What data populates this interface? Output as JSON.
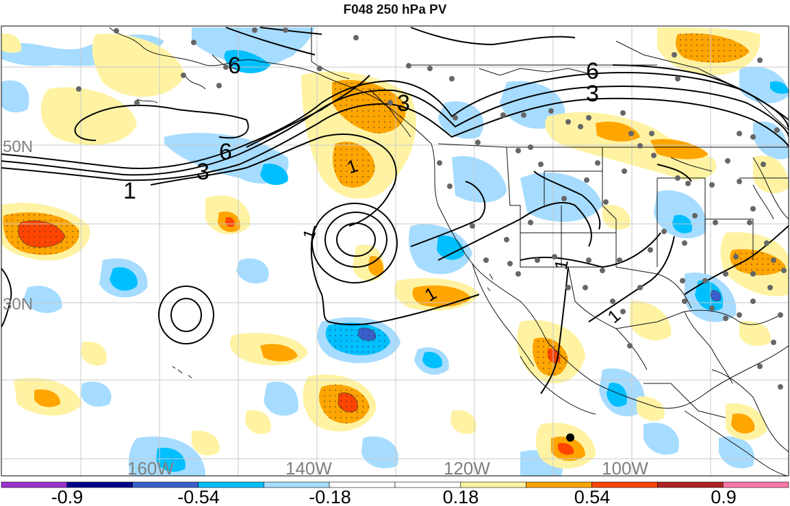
{
  "title": "F048 250 hPa PV",
  "latitude_labels": [
    "50N",
    "30N"
  ],
  "longitude_labels": [
    "160W",
    "140W",
    "120W",
    "100W"
  ],
  "contour_labels": [
    "6",
    "3",
    "6",
    "3",
    "1",
    "3",
    "6",
    "1",
    "1",
    "1",
    "1",
    "1"
  ],
  "colorbar": {
    "tick_labels": [
      "-0.9",
      "-0.54",
      "-0.18",
      "0.18",
      "0.54",
      "0.9"
    ],
    "colors": [
      "#9a32cd",
      "#00008b",
      "#3a5fcd",
      "#00bfff",
      "#a6dcff",
      "#ffffff",
      "#ffffff",
      "#fff3a3",
      "#ffa500",
      "#ff4500",
      "#b22222",
      "#ff77aa"
    ]
  },
  "colors": {
    "ocean_light_blue": "#a6dcff",
    "blue": "#00bfff",
    "deep_blue": "#3a5fcd",
    "light_yellow": "#fff3a3",
    "orange": "#ffa500",
    "red_orange": "#ff4500",
    "grid": "#c8c8c8",
    "station": "#666666"
  }
}
